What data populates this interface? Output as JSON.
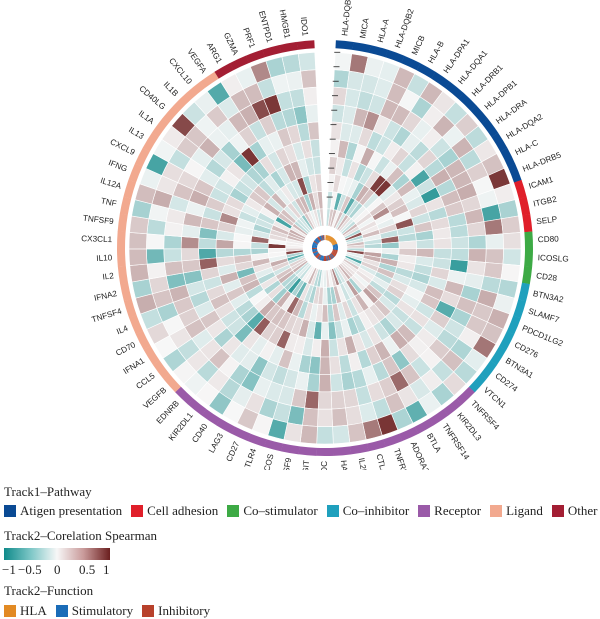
{
  "chart_data": {
    "type": "heatmap",
    "layout": "circular",
    "pathway_colors": {
      "Atigen presentation": "#0a4a94",
      "Cell adhesion": "#e01f2a",
      "Co-stimulator": "#3daa45",
      "Co-inhibitor": "#1fa0bd",
      "Receptor": "#9a5aa8",
      "Ligand": "#f2a98f",
      "Other": "#a31e33"
    },
    "function_colors": {
      "HLA": "#e28a23",
      "Stimulatory": "#1a6cb8",
      "Inhibitory": "#b8412b"
    },
    "genes": [
      {
        "name": "HLA-DQB1",
        "pathway": "Atigen presentation",
        "function": "HLA"
      },
      {
        "name": "MICA",
        "pathway": "Atigen presentation",
        "function": "HLA"
      },
      {
        "name": "HLA-A",
        "pathway": "Atigen presentation",
        "function": "HLA"
      },
      {
        "name": "HLA-DQB2",
        "pathway": "Atigen presentation",
        "function": "HLA"
      },
      {
        "name": "MICB",
        "pathway": "Atigen presentation",
        "function": "HLA"
      },
      {
        "name": "HLA-B",
        "pathway": "Atigen presentation",
        "function": "HLA"
      },
      {
        "name": "HLA-DPA1",
        "pathway": "Atigen presentation",
        "function": "HLA"
      },
      {
        "name": "HLA-DQA1",
        "pathway": "Atigen presentation",
        "function": "HLA"
      },
      {
        "name": "HLA-DRB1",
        "pathway": "Atigen presentation",
        "function": "HLA"
      },
      {
        "name": "HLA-DPB1",
        "pathway": "Atigen presentation",
        "function": "HLA"
      },
      {
        "name": "HLA-DRA",
        "pathway": "Atigen presentation",
        "function": "HLA"
      },
      {
        "name": "HLA-DQA2",
        "pathway": "Atigen presentation",
        "function": "HLA"
      },
      {
        "name": "HLA-C",
        "pathway": "Atigen presentation",
        "function": "HLA"
      },
      {
        "name": "HLA-DRB5",
        "pathway": "Atigen presentation",
        "function": "HLA"
      },
      {
        "name": "ICAM1",
        "pathway": "Cell adhesion",
        "function": "Stimulatory"
      },
      {
        "name": "ITGB2",
        "pathway": "Cell adhesion",
        "function": "Stimulatory"
      },
      {
        "name": "SELP",
        "pathway": "Cell adhesion",
        "function": "Stimulatory"
      },
      {
        "name": "CD80",
        "pathway": "Co-stimulator",
        "function": "Stimulatory"
      },
      {
        "name": "ICOSLG",
        "pathway": "Co-stimulator",
        "function": "Stimulatory"
      },
      {
        "name": "CD28",
        "pathway": "Co-stimulator",
        "function": "Stimulatory"
      },
      {
        "name": "BTN3A2",
        "pathway": "Co-inhibitor",
        "function": "Inhibitory"
      },
      {
        "name": "SLAMF7",
        "pathway": "Co-inhibitor",
        "function": "Inhibitory"
      },
      {
        "name": "PDCD1LG2",
        "pathway": "Co-inhibitor",
        "function": "Inhibitory"
      },
      {
        "name": "CD276",
        "pathway": "Co-inhibitor",
        "function": "Inhibitory"
      },
      {
        "name": "BTN3A1",
        "pathway": "Co-inhibitor",
        "function": "Inhibitory"
      },
      {
        "name": "CD274",
        "pathway": "Co-inhibitor",
        "function": "Inhibitory"
      },
      {
        "name": "VTCN1",
        "pathway": "Co-inhibitor",
        "function": "Inhibitory"
      },
      {
        "name": "TNFRSF4",
        "pathway": "Receptor",
        "function": "Stimulatory"
      },
      {
        "name": "KIR2DL3",
        "pathway": "Receptor",
        "function": "Inhibitory"
      },
      {
        "name": "TNFRSF14",
        "pathway": "Receptor",
        "function": "Stimulatory"
      },
      {
        "name": "BTLA",
        "pathway": "Receptor",
        "function": "Inhibitory"
      },
      {
        "name": "ADORA2A",
        "pathway": "Receptor",
        "function": "Inhibitory"
      },
      {
        "name": "TNFRSF",
        "pathway": "Receptor",
        "function": "Stimulatory"
      },
      {
        "name": "CTLA4",
        "pathway": "Receptor",
        "function": "Inhibitory"
      },
      {
        "name": "IL2RA",
        "pathway": "Receptor",
        "function": "Stimulatory"
      },
      {
        "name": "HAVC",
        "pathway": "Receptor",
        "function": "Inhibitory"
      },
      {
        "name": "PDC",
        "pathway": "Receptor",
        "function": "Inhibitory"
      },
      {
        "name": "TIGIT",
        "pathway": "Receptor",
        "function": "Inhibitory"
      },
      {
        "name": "RSF9",
        "pathway": "Receptor",
        "function": "Stimulatory"
      },
      {
        "name": "ICOS",
        "pathway": "Receptor",
        "function": "Stimulatory"
      },
      {
        "name": "TLR4",
        "pathway": "Receptor",
        "function": "Stimulatory"
      },
      {
        "name": "CD27",
        "pathway": "Receptor",
        "function": "Stimulatory"
      },
      {
        "name": "LAG3",
        "pathway": "Receptor",
        "function": "Inhibitory"
      },
      {
        "name": "CD40",
        "pathway": "Receptor",
        "function": "Stimulatory"
      },
      {
        "name": "KIR2DL1",
        "pathway": "Receptor",
        "function": "Inhibitory"
      },
      {
        "name": "EDNRB",
        "pathway": "Receptor",
        "function": "Inhibitory"
      },
      {
        "name": "VEGFB",
        "pathway": "Ligand",
        "function": "Inhibitory"
      },
      {
        "name": "CCL5",
        "pathway": "Ligand",
        "function": "Stimulatory"
      },
      {
        "name": "IFNA1",
        "pathway": "Ligand",
        "function": "Stimulatory"
      },
      {
        "name": "CD70",
        "pathway": "Ligand",
        "function": "Stimulatory"
      },
      {
        "name": "IL4",
        "pathway": "Ligand",
        "function": "Inhibitory"
      },
      {
        "name": "TNFSF4",
        "pathway": "Ligand",
        "function": "Stimulatory"
      },
      {
        "name": "IFNA2",
        "pathway": "Ligand",
        "function": "Stimulatory"
      },
      {
        "name": "IL2",
        "pathway": "Ligand",
        "function": "Stimulatory"
      },
      {
        "name": "IL10",
        "pathway": "Ligand",
        "function": "Inhibitory"
      },
      {
        "name": "CX3CL1",
        "pathway": "Ligand",
        "function": "Stimulatory"
      },
      {
        "name": "TNFSF9",
        "pathway": "Ligand",
        "function": "Stimulatory"
      },
      {
        "name": "TNF",
        "pathway": "Ligand",
        "function": "Stimulatory"
      },
      {
        "name": "IL12A",
        "pathway": "Ligand",
        "function": "Stimulatory"
      },
      {
        "name": "IFNG",
        "pathway": "Ligand",
        "function": "Stimulatory"
      },
      {
        "name": "CXCL9",
        "pathway": "Ligand",
        "function": "Stimulatory"
      },
      {
        "name": "IL13",
        "pathway": "Ligand",
        "function": "Inhibitory"
      },
      {
        "name": "IL1A",
        "pathway": "Ligand",
        "function": "Stimulatory"
      },
      {
        "name": "CD40LG",
        "pathway": "Ligand",
        "function": "Stimulatory"
      },
      {
        "name": "IL1B",
        "pathway": "Ligand",
        "function": "Stimulatory"
      },
      {
        "name": "CXCL10",
        "pathway": "Ligand",
        "function": "Stimulatory"
      },
      {
        "name": "VEGFA",
        "pathway": "Ligand",
        "function": "Inhibitory"
      },
      {
        "name": "ARG1",
        "pathway": "Other",
        "function": "Inhibitory"
      },
      {
        "name": "GZMA",
        "pathway": "Other",
        "function": "Stimulatory"
      },
      {
        "name": "PRF1",
        "pathway": "Other",
        "function": "Stimulatory"
      },
      {
        "name": "ENTPD1",
        "pathway": "Other",
        "function": "Inhibitory"
      },
      {
        "name": "HMGB1",
        "pathway": "Other",
        "function": "Stimulatory"
      },
      {
        "name": "IDO1",
        "pathway": "Other",
        "function": "Inhibitory"
      }
    ],
    "n_rings": 10,
    "color_scale": {
      "min": -1,
      "max": 1,
      "colors": [
        "#0f8a8a",
        "#f7f7f7",
        "#6b1f1f"
      ]
    },
    "seed": 7
  },
  "legend": {
    "track1_title": "Track1–Pathway",
    "track1_items": [
      {
        "label": "Atigen presentation",
        "color": "#0a4a94"
      },
      {
        "label": "Cell adhesion",
        "color": "#e01f2a"
      },
      {
        "label": "Co–stimulator",
        "color": "#3daa45"
      },
      {
        "label": "Co–inhibitor",
        "color": "#1fa0bd"
      },
      {
        "label": "Receptor",
        "color": "#9a5aa8"
      },
      {
        "label": "Ligand",
        "color": "#f2a98f"
      },
      {
        "label": "Other",
        "color": "#a31e33"
      }
    ],
    "track2_title": "Track2–Corelation Spearman",
    "ticks": [
      "−1",
      "−0.5",
      "0",
      "0.5",
      "1"
    ],
    "function_title": "Track2–Function",
    "function_items": [
      {
        "label": "HLA",
        "color": "#e28a23"
      },
      {
        "label": "Stimulatory",
        "color": "#1a6cb8"
      },
      {
        "label": "Inhibitory",
        "color": "#b8412b"
      }
    ]
  }
}
